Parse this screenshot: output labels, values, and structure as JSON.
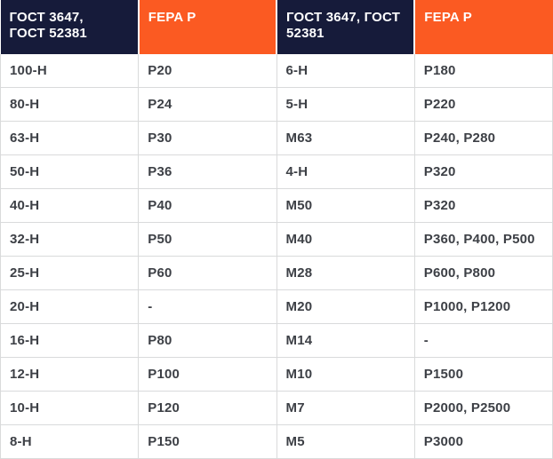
{
  "colors": {
    "header-navy": "#161b3a",
    "header-orange": "#fb5a22",
    "header-text": "#ffffff",
    "body-text": "#3d4046",
    "border-gray": "#d9dadb",
    "body-bg": "#ffffff"
  },
  "table": {
    "description": "Abrasive grit size conversion table GOST to FEPA",
    "headers": [
      {
        "label": "ГОСТ 3647,\nГОСТ 52381"
      },
      {
        "label": "FEPA P"
      },
      {
        "label": "ГОСТ 3647, ГОСТ\n52381"
      },
      {
        "label": "FEPA P"
      }
    ],
    "rows": [
      [
        "100-Н",
        "P20",
        "6-Н",
        "P180"
      ],
      [
        "80-Н",
        "P24",
        "5-Н",
        "P220"
      ],
      [
        "63-Н",
        "P30",
        "М63",
        "P240, P280"
      ],
      [
        "50-Н",
        "P36",
        "4-Н",
        "P320"
      ],
      [
        "40-Н",
        "P40",
        "М50",
        "P320"
      ],
      [
        "32-Н",
        "P50",
        "М40",
        "P360, P400, P500"
      ],
      [
        "25-Н",
        "P60",
        "М28",
        "P600, P800"
      ],
      [
        "20-Н",
        "-",
        "М20",
        "P1000, P1200"
      ],
      [
        "16-Н",
        "P80",
        "М14",
        "-"
      ],
      [
        "12-Н",
        "P100",
        "М10",
        "P1500"
      ],
      [
        "10-Н",
        "P120",
        "М7",
        "P2000, P2500"
      ],
      [
        "8-Н",
        "P150",
        "М5",
        "P3000"
      ]
    ]
  }
}
